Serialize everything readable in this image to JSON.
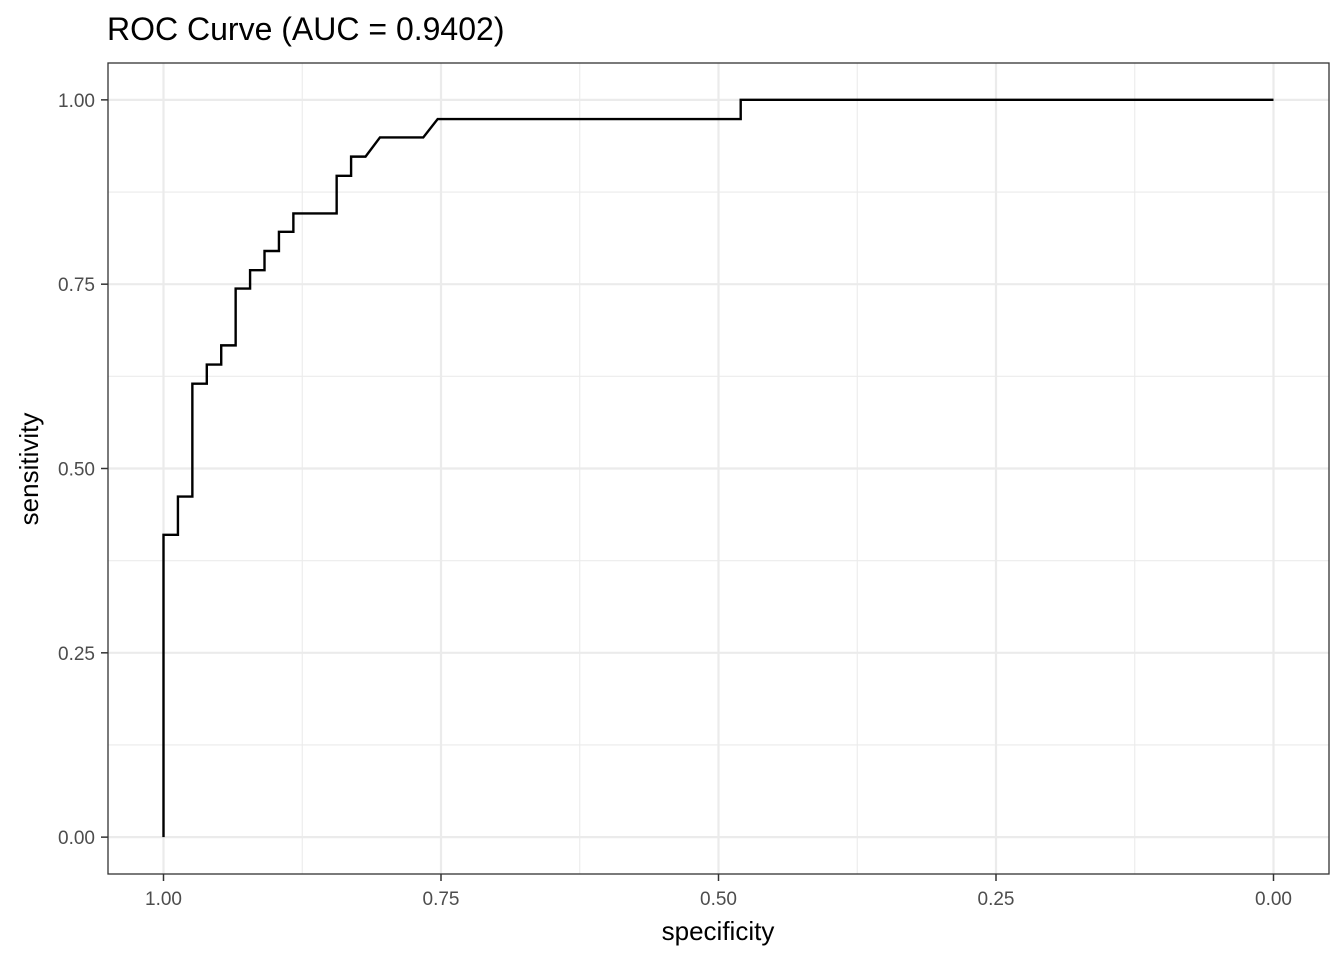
{
  "chart_data": {
    "type": "line",
    "title": "ROC Curve (AUC = 0.9402)",
    "xlabel": "specificity",
    "ylabel": "sensitivity",
    "x_reversed": true,
    "xlim": [
      1.05,
      -0.05
    ],
    "ylim": [
      -0.05,
      1.05
    ],
    "xticks": [
      1.0,
      0.75,
      0.5,
      0.25,
      0.0
    ],
    "xtick_labels": [
      "1.00",
      "0.75",
      "0.50",
      "0.25",
      "0.00"
    ],
    "yticks": [
      0.0,
      0.25,
      0.5,
      0.75,
      1.0
    ],
    "ytick_labels": [
      "0.00",
      "0.25",
      "0.50",
      "0.75",
      "1.00"
    ],
    "grid": true,
    "line_color": "#000000",
    "series": [
      {
        "specificity": [
          1.0,
          1.0,
          0.987,
          0.987,
          0.974,
          0.974,
          0.961,
          0.961,
          0.948,
          0.948,
          0.935,
          0.935,
          0.922,
          0.922,
          0.909,
          0.909,
          0.896,
          0.896,
          0.883,
          0.883,
          0.844,
          0.844,
          0.831,
          0.831,
          0.818,
          0.805,
          0.766,
          0.753,
          0.753,
          0.48,
          0.48,
          0.0
        ],
        "sensitivity": [
          0.0,
          0.41,
          0.41,
          0.462,
          0.462,
          0.615,
          0.615,
          0.641,
          0.641,
          0.667,
          0.667,
          0.744,
          0.744,
          0.769,
          0.769,
          0.795,
          0.795,
          0.821,
          0.821,
          0.846,
          0.846,
          0.897,
          0.897,
          0.923,
          0.923,
          0.949,
          0.949,
          0.974,
          0.974,
          0.974,
          1.0,
          1.0
        ]
      }
    ]
  }
}
